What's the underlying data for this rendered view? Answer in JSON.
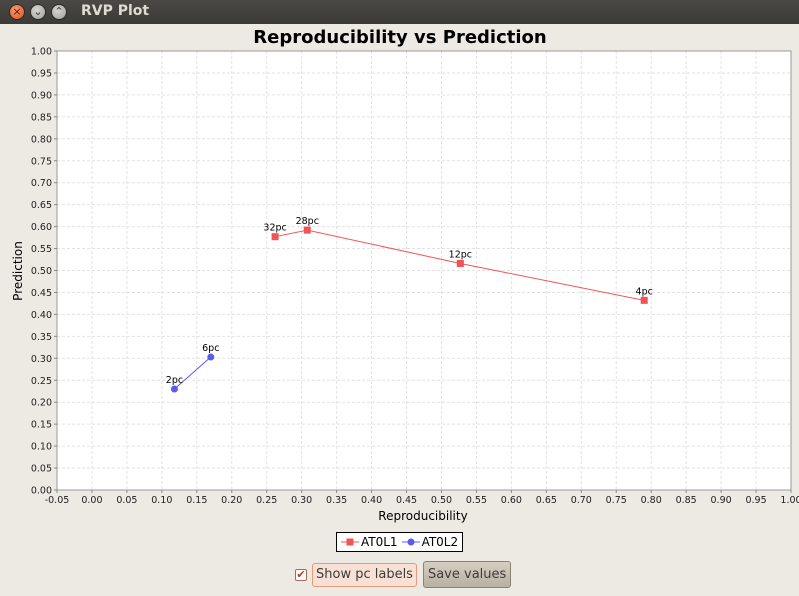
{
  "window": {
    "title": "RVP Plot"
  },
  "controls": {
    "show_labels_checked": true,
    "show_labels_text": "Show pc labels",
    "save_label": "Save values"
  },
  "chart_data": {
    "type": "line",
    "title": "Reproducibility vs Prediction",
    "xlabel": "Reproducibility",
    "ylabel": "Prediction",
    "xlim": [
      -0.05,
      1.0
    ],
    "ylim": [
      0.0,
      1.0
    ],
    "x_ticks": [
      "-0.05",
      "0.00",
      "0.05",
      "0.10",
      "0.15",
      "0.20",
      "0.25",
      "0.30",
      "0.35",
      "0.40",
      "0.45",
      "0.50",
      "0.55",
      "0.60",
      "0.65",
      "0.70",
      "0.75",
      "0.80",
      "0.85",
      "0.90",
      "0.95",
      "1.00"
    ],
    "y_ticks": [
      "0.00",
      "0.05",
      "0.10",
      "0.15",
      "0.20",
      "0.25",
      "0.30",
      "0.35",
      "0.40",
      "0.45",
      "0.50",
      "0.55",
      "0.60",
      "0.65",
      "0.70",
      "0.75",
      "0.80",
      "0.85",
      "0.90",
      "0.95",
      "1.00"
    ],
    "grid": true,
    "legend_position": "bottom",
    "series": [
      {
        "name": "AT0L1",
        "color": "#f25454",
        "marker": "square",
        "points": [
          {
            "x": 0.262,
            "y": 0.577,
            "label": "32pc"
          },
          {
            "x": 0.308,
            "y": 0.592,
            "label": "28pc"
          },
          {
            "x": 0.527,
            "y": 0.516,
            "label": "12pc"
          },
          {
            "x": 0.79,
            "y": 0.432,
            "label": "4pc"
          }
        ]
      },
      {
        "name": "AT0L2",
        "color": "#5b5bf0",
        "marker": "circle",
        "points": [
          {
            "x": 0.118,
            "y": 0.23,
            "label": "2pc"
          },
          {
            "x": 0.17,
            "y": 0.303,
            "label": "6pc"
          }
        ]
      }
    ]
  }
}
